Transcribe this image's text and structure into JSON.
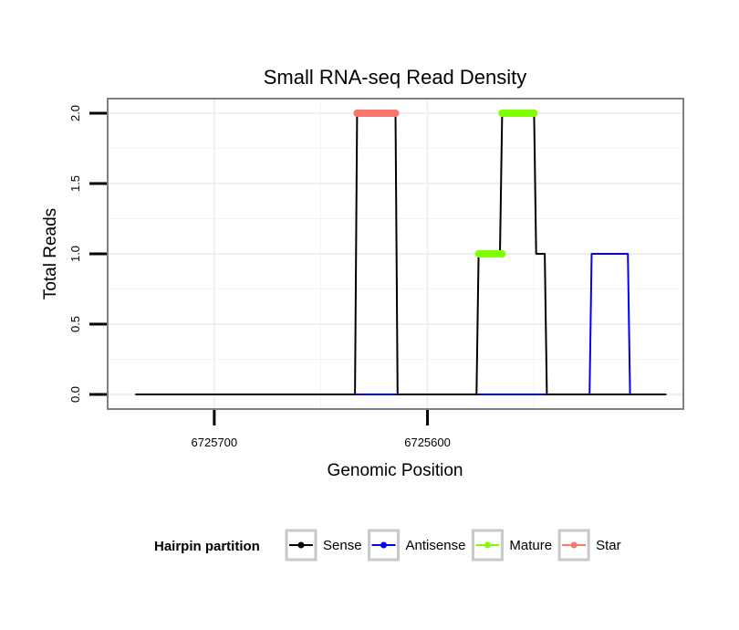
{
  "chart_data": {
    "type": "line",
    "title": "Small RNA-seq Read Density",
    "xlabel": "Genomic Position",
    "ylabel": "Total Reads",
    "x_reversed": true,
    "xlim": [
      6725750,
      6725480
    ],
    "ylim": [
      0,
      2
    ],
    "x_ticks": [
      6725700,
      6725600
    ],
    "x_tick_labels": [
      "6725700",
      "6725600"
    ],
    "y_ticks": [
      0,
      0.5,
      1,
      1.5,
      2
    ],
    "y_tick_labels": [
      "0.0",
      "0.5",
      "1.0",
      "1.5",
      "2.0"
    ],
    "grid": true,
    "legend_position": "bottom",
    "legend": {
      "title": "Hairpin partition",
      "entries": [
        {
          "name": "Sense",
          "color": "#000000"
        },
        {
          "name": "Antisense",
          "color": "#0000ff"
        },
        {
          "name": "Mature",
          "color": "#7fff00"
        },
        {
          "name": "Star",
          "color": "#f8766d"
        }
      ]
    },
    "series": [
      {
        "name": "Sense",
        "color": "#000000",
        "points": [
          [
            6725737,
            0
          ],
          [
            6725634,
            0
          ],
          [
            6725633,
            2
          ],
          [
            6725615,
            2
          ],
          [
            6725614,
            0
          ],
          [
            6725577,
            0
          ],
          [
            6725576,
            1
          ],
          [
            6725566,
            1
          ],
          [
            6725565,
            2
          ],
          [
            6725550,
            2
          ],
          [
            6725549,
            1
          ],
          [
            6725545,
            1
          ],
          [
            6725544,
            0
          ],
          [
            6725488,
            0
          ]
        ]
      },
      {
        "name": "Antisense",
        "color": "#0000ff",
        "points": [
          [
            6725634,
            0
          ],
          [
            6725614,
            0
          ],
          [
            6725577,
            0
          ],
          [
            6725544,
            0
          ],
          [
            6725524,
            0
          ],
          [
            6725523,
            1
          ],
          [
            6725506,
            1
          ],
          [
            6725505,
            0
          ],
          [
            6725488,
            0
          ]
        ]
      },
      {
        "name": "Mature",
        "color": "#7fff00",
        "segments": [
          {
            "x_start": 6725576,
            "x_end": 6725565,
            "y": 1
          },
          {
            "x_start": 6725565,
            "x_end": 6725550,
            "y": 2
          }
        ]
      },
      {
        "name": "Star",
        "color": "#f8766d",
        "segments": [
          {
            "x_start": 6725633,
            "x_end": 6725615,
            "y": 2
          }
        ]
      }
    ]
  }
}
